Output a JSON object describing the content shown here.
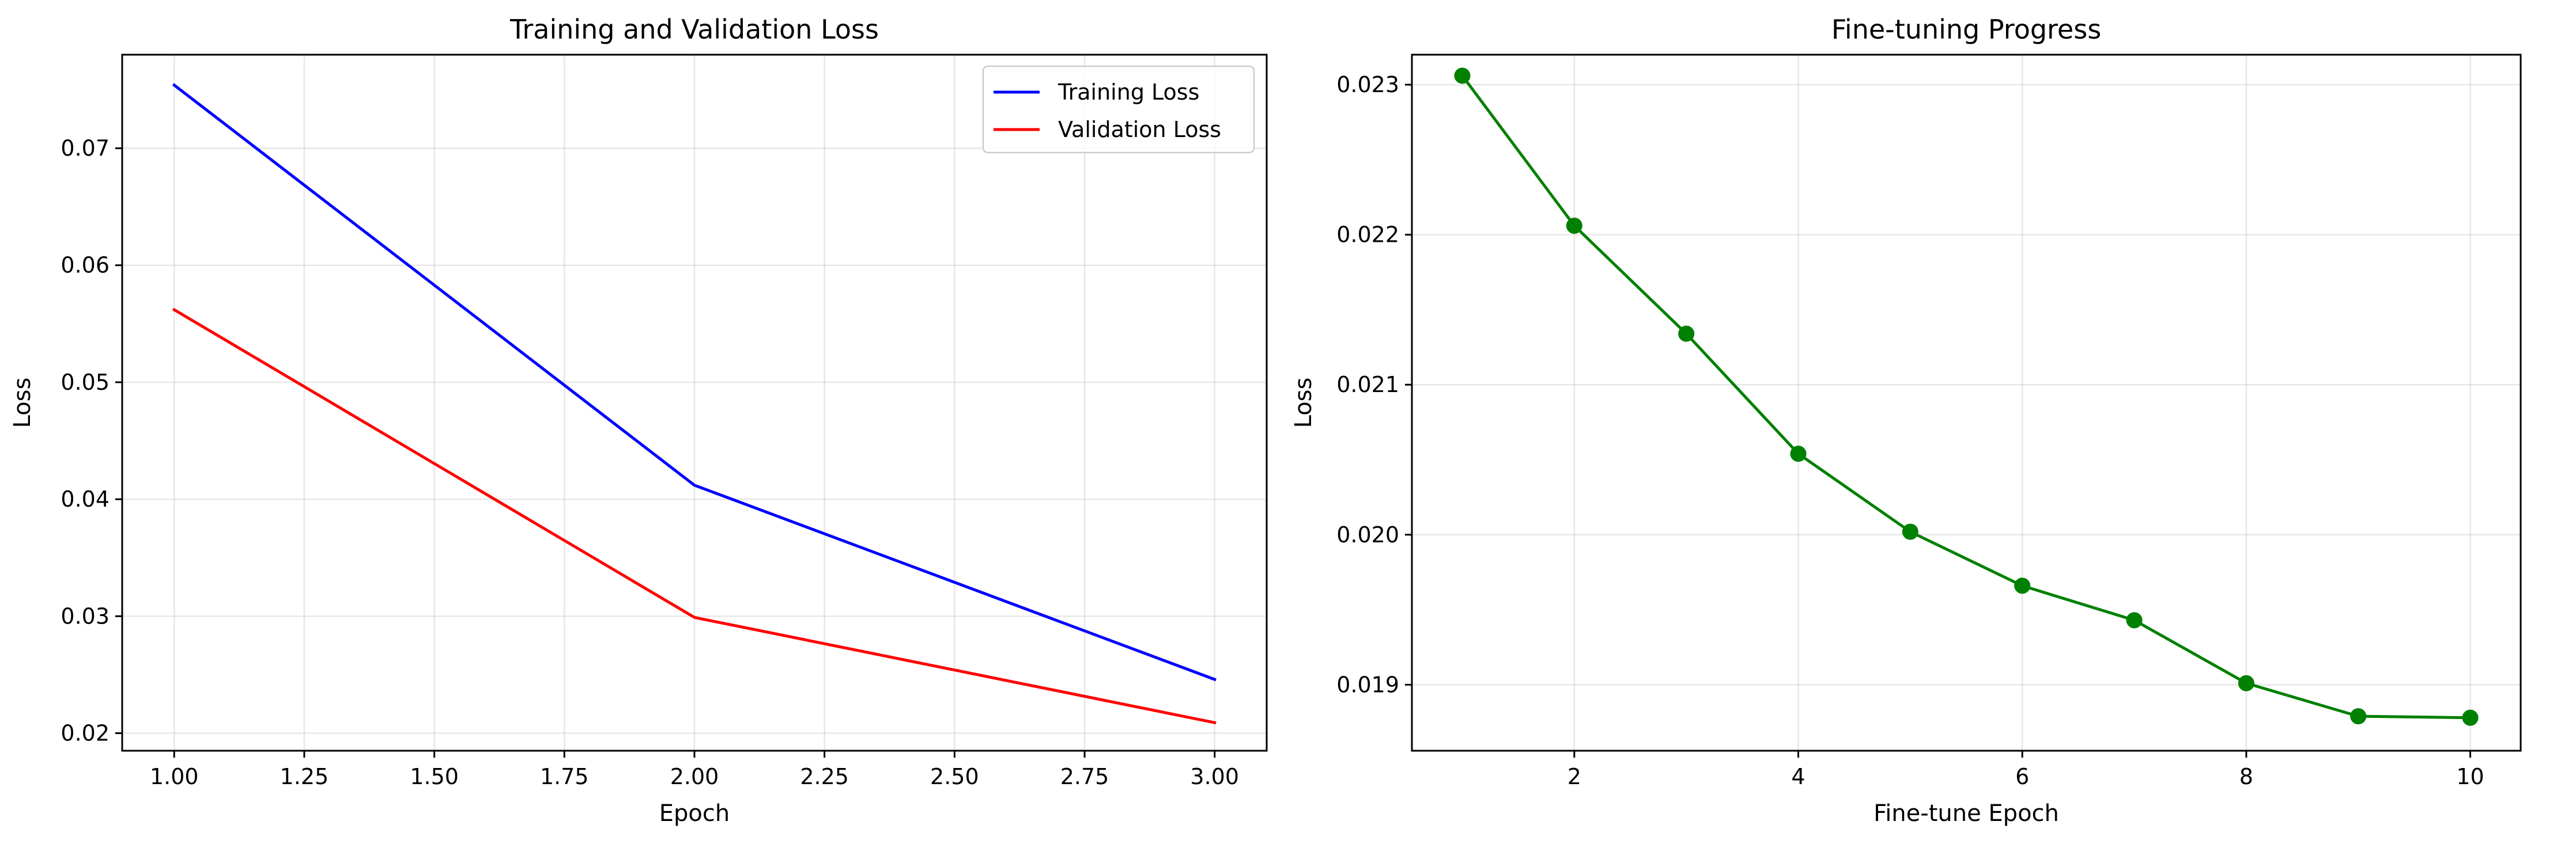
{
  "chart_data": [
    {
      "type": "line",
      "title": "Training and Validation Loss",
      "xlabel": "Epoch",
      "ylabel": "Loss",
      "xlim": [
        0.9,
        3.1
      ],
      "ylim": [
        0.0185,
        0.078
      ],
      "x_ticks": [
        1.0,
        1.25,
        1.5,
        1.75,
        2.0,
        2.25,
        2.5,
        2.75,
        3.0
      ],
      "x_tick_labels": [
        "1.00",
        "1.25",
        "1.50",
        "1.75",
        "2.00",
        "2.25",
        "2.50",
        "2.75",
        "3.00"
      ],
      "y_ticks": [
        0.02,
        0.03,
        0.04,
        0.05,
        0.06,
        0.07
      ],
      "y_tick_labels": [
        "0.02",
        "0.03",
        "0.04",
        "0.05",
        "0.06",
        "0.07"
      ],
      "grid": true,
      "legend": "upper right",
      "x": [
        1,
        2,
        3
      ],
      "series": [
        {
          "name": "Training Loss",
          "values": [
            0.0754,
            0.0412,
            0.0246
          ],
          "color": "#0000ff",
          "markers": false
        },
        {
          "name": "Validation Loss",
          "values": [
            0.0562,
            0.0299,
            0.0209
          ],
          "color": "#ff0000",
          "markers": false
        }
      ]
    },
    {
      "type": "line",
      "title": "Fine-tuning Progress",
      "xlabel": "Fine-tune Epoch",
      "ylabel": "Loss",
      "xlim": [
        0.55,
        10.45
      ],
      "ylim": [
        0.01856,
        0.0232
      ],
      "x_ticks": [
        2,
        4,
        6,
        8,
        10
      ],
      "x_tick_labels": [
        "2",
        "4",
        "6",
        "8",
        "10"
      ],
      "y_ticks": [
        0.019,
        0.02,
        0.021,
        0.022,
        0.023
      ],
      "y_tick_labels": [
        "0.019",
        "0.020",
        "0.021",
        "0.022",
        "0.023"
      ],
      "grid": true,
      "x": [
        1,
        2,
        3,
        4,
        5,
        6,
        7,
        8,
        9,
        10
      ],
      "series": [
        {
          "name": "",
          "values": [
            0.02306,
            0.02206,
            0.02134,
            0.02054,
            0.02002,
            0.01966,
            0.01943,
            0.01901,
            0.01879,
            0.01878
          ],
          "color": "#008000",
          "markers": true
        }
      ]
    }
  ]
}
